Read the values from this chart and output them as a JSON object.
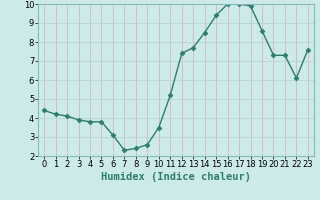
{
  "x": [
    0,
    1,
    2,
    3,
    4,
    5,
    6,
    7,
    8,
    9,
    10,
    11,
    12,
    13,
    14,
    15,
    16,
    17,
    18,
    19,
    20,
    21,
    22,
    23
  ],
  "y": [
    4.4,
    4.2,
    4.1,
    3.9,
    3.8,
    3.8,
    3.1,
    2.3,
    2.4,
    2.6,
    3.5,
    5.2,
    7.4,
    7.7,
    8.5,
    9.4,
    10.0,
    10.0,
    9.9,
    8.6,
    7.3,
    7.3,
    6.1,
    7.6
  ],
  "line_color": "#2e7d6e",
  "marker": "D",
  "marker_size": 2.5,
  "bg_color": "#cceaea",
  "grid_color": "#b8d8d8",
  "xlabel": "Humidex (Indice chaleur)",
  "ylim": [
    2,
    10
  ],
  "xlim": [
    -0.5,
    23.5
  ],
  "yticks": [
    2,
    3,
    4,
    5,
    6,
    7,
    8,
    9,
    10
  ],
  "xticks": [
    0,
    1,
    2,
    3,
    4,
    5,
    6,
    7,
    8,
    9,
    10,
    11,
    12,
    13,
    14,
    15,
    16,
    17,
    18,
    19,
    20,
    21,
    22,
    23
  ],
  "tick_fontsize": 6,
  "xlabel_fontsize": 7.5
}
